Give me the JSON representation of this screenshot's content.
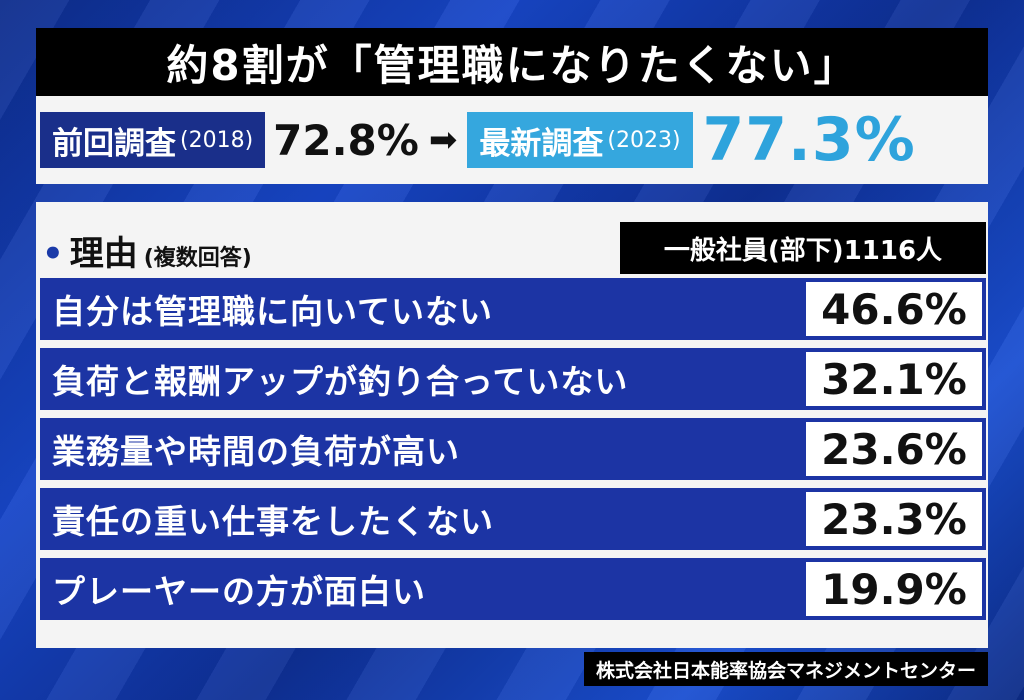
{
  "title": "約8割が「管理職になりたくない」",
  "comparison": {
    "prev_label": "前回調査",
    "prev_year": "(2018)",
    "prev_value": "72.8%",
    "arrow": "➡",
    "new_label": "最新調査",
    "new_year": "(2023)",
    "new_value": "77.3%"
  },
  "reasons": {
    "heading": "理由",
    "heading_sub": "(複数回答)",
    "respondents": "一般社員(部下)1116人"
  },
  "chart_data": {
    "type": "table",
    "title": "理由(複数回答)",
    "categories": [
      "自分は管理職に向いていない",
      "負荷と報酬アップが釣り合っていない",
      "業務量や時間の負荷が高い",
      "責任の重い仕事をしたくない",
      "プレーヤーの方が面白い"
    ],
    "values": [
      46.6,
      32.1,
      23.6,
      23.3,
      19.9
    ],
    "value_labels": [
      "46.6%",
      "32.1%",
      "23.6%",
      "23.3%",
      "19.9%"
    ]
  },
  "source": "株式会社日本能率協会マネジメントセンター",
  "colors": {
    "row_bg": "#1c34a4",
    "new_accent": "#2ea3dc",
    "prev_tag": "#1a2f8a"
  }
}
